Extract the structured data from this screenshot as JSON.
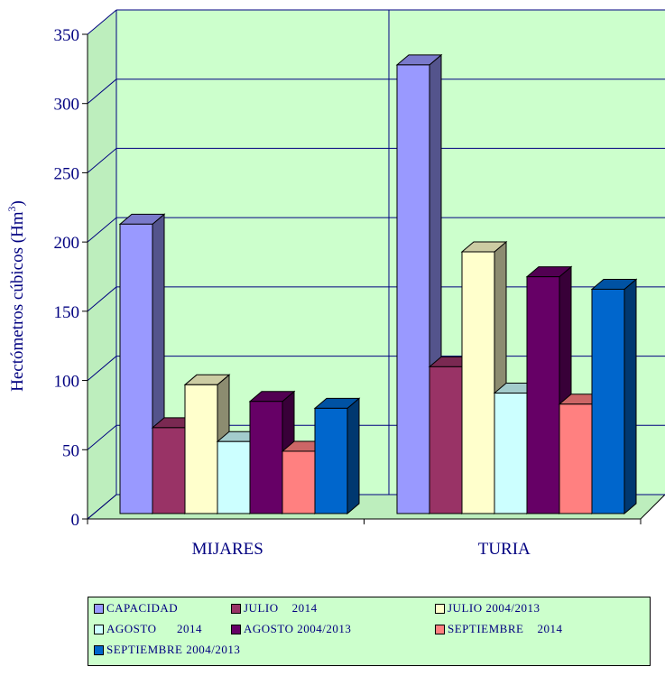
{
  "chart_data": {
    "type": "bar",
    "ylabel": "Hectómetros cúbicos (Hm",
    "ylabel_sup": "3",
    "ylabel_close": ")",
    "ylim": [
      0,
      350
    ],
    "yticks": [
      "0",
      "50",
      "100",
      "150",
      "200",
      "250",
      "300",
      "350"
    ],
    "grid": true,
    "legend_position": "bottom",
    "categories": [
      "MIJARES",
      "TURIA"
    ],
    "series": [
      {
        "name": "CAPACIDAD",
        "color": "#9999ff",
        "values": [
          209,
          324
        ]
      },
      {
        "name": "JULIO    2014",
        "color": "#993366",
        "values": [
          62,
          106
        ]
      },
      {
        "name": "JULIO 2004/2013",
        "color": "#ffffcc",
        "values": [
          93,
          189
        ]
      },
      {
        "name": "AGOSTO      2014",
        "color": "#ccffff",
        "values": [
          52,
          87
        ]
      },
      {
        "name": "AGOSTO 2004/2013",
        "color": "#660066",
        "values": [
          81,
          171
        ]
      },
      {
        "name": "SEPTIEMBRE    2014",
        "color": "#ff8080",
        "values": [
          45,
          79
        ]
      },
      {
        "name": "SEPTIEMBRE 2004/2013",
        "color": "#0066cc",
        "values": [
          76,
          162
        ]
      }
    ],
    "plot_background": "#ccffcc",
    "gridline_color": "#000080"
  }
}
